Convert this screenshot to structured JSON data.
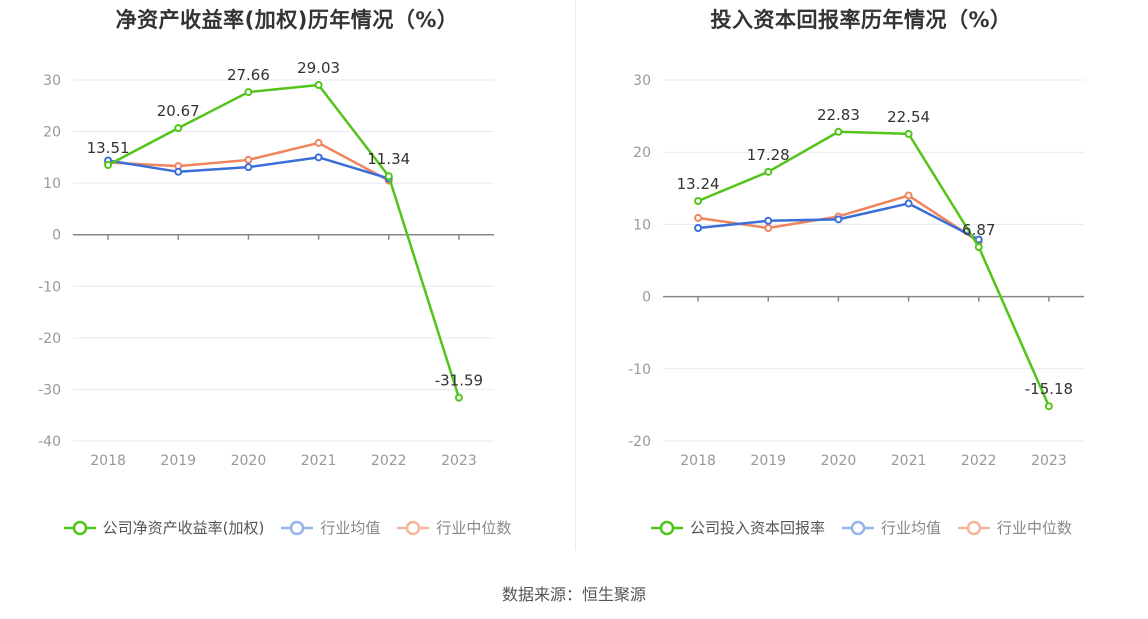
{
  "source": "数据来源：恒生聚源",
  "colors": {
    "company": "#52c41a",
    "avg": "#3b6fd8",
    "median": "#f0845c",
    "grid": "#e6e9f5",
    "axis": "#999999"
  },
  "chart_data": [
    {
      "type": "line",
      "title": "净资产收益率(加权)历年情况（%）",
      "categories": [
        "2018",
        "2019",
        "2020",
        "2021",
        "2022",
        "2023"
      ],
      "ylim": [
        -40,
        30
      ],
      "yticks": [
        "30",
        "20",
        "10",
        "0",
        "-10",
        "-20",
        "-30",
        "-40"
      ],
      "grid": true,
      "legend_position": "bottom",
      "series": [
        {
          "name": "公司净资产收益率(加权)",
          "values": [
            13.51,
            20.67,
            27.66,
            29.03,
            11.34,
            -31.59
          ],
          "labels": [
            "13.51",
            "20.67",
            "27.66",
            "29.03",
            "11.34",
            "-31.59"
          ]
        },
        {
          "name": "行业均值",
          "values": [
            14.4,
            12.2,
            13.1,
            15.0,
            10.9,
            null
          ]
        },
        {
          "name": "行业中位数",
          "values": [
            14.0,
            13.3,
            14.5,
            17.8,
            10.5,
            null
          ]
        }
      ]
    },
    {
      "type": "line",
      "title": "投入资本回报率历年情况（%）",
      "categories": [
        "2018",
        "2019",
        "2020",
        "2021",
        "2022",
        "2023"
      ],
      "ylim": [
        -20,
        30
      ],
      "yticks": [
        "30",
        "20",
        "10",
        "0",
        "-10",
        "-20"
      ],
      "grid": true,
      "legend_position": "bottom",
      "series": [
        {
          "name": "公司投入资本回报率",
          "values": [
            13.24,
            17.28,
            22.83,
            22.54,
            6.87,
            -15.18
          ],
          "labels": [
            "13.24",
            "17.28",
            "22.83",
            "22.54",
            "6.87",
            "-15.18"
          ]
        },
        {
          "name": "行业均值",
          "values": [
            9.5,
            10.5,
            10.7,
            12.9,
            7.9,
            null
          ]
        },
        {
          "name": "行业中位数",
          "values": [
            10.9,
            9.5,
            11.1,
            14.0,
            7.6,
            null
          ]
        }
      ]
    }
  ]
}
